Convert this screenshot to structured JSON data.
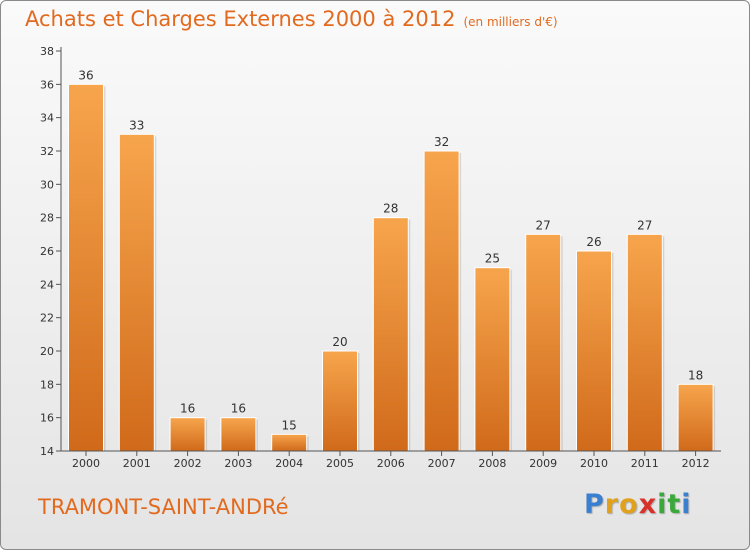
{
  "chart_data": {
    "type": "bar",
    "title": "Achats et Charges Externes 2000 à 2012",
    "unit_note": "(en milliers d'€)",
    "categories": [
      "2000",
      "2001",
      "2002",
      "2003",
      "2004",
      "2005",
      "2006",
      "2007",
      "2008",
      "2009",
      "2010",
      "2011",
      "2012"
    ],
    "values": [
      36,
      33,
      16,
      16,
      15,
      20,
      28,
      32,
      25,
      27,
      26,
      27,
      18
    ],
    "ylim": [
      14,
      38
    ],
    "yticks": [
      14,
      16,
      18,
      20,
      22,
      24,
      26,
      28,
      30,
      32,
      34,
      36,
      38
    ],
    "grid": false,
    "bar_color": "#f29a3e",
    "bar_color_dark": "#d4701c"
  },
  "commune": "TRAMONT-SAINT-ANDRé",
  "logo": {
    "letters": [
      "P",
      "r",
      "o",
      "x",
      "i",
      "t",
      "i"
    ],
    "colors": [
      "#3b7fd0",
      "#e2a11c",
      "#e2a11c",
      "#d7322a",
      "#3aa83a",
      "#3aa83a",
      "#3b7fd0"
    ]
  }
}
